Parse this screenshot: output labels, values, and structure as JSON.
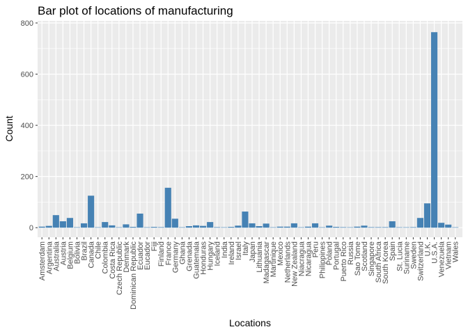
{
  "chart_data": {
    "type": "bar",
    "title": "Bar plot of locations of manufacturing",
    "xlabel": "Locations",
    "ylabel": "Count",
    "ylim": [
      0,
      800
    ],
    "yticks": [
      0,
      200,
      400,
      600,
      800
    ],
    "grid": true,
    "bar_color": "#4682B4",
    "panel_color": "#EBEBEB",
    "grid_color": "#FFFFFF",
    "categories": [
      "Amsterdam",
      "Argentina",
      "Australia",
      "Austria",
      "Belgium",
      "Bolivia",
      "Brazil",
      "Canada",
      "Chile",
      "Colombia",
      "Costa Rica",
      "Czech Republic",
      "Denmark",
      "Dominican Republic",
      "Ecuador",
      "Eucador",
      "Fiji",
      "Finland",
      "France",
      "Germany",
      "Ghana",
      "Grenada",
      "Guatemala",
      "Honduras",
      "Hungary",
      "Iceland",
      "India",
      "Ireland",
      "Israel",
      "Italy",
      "Japan",
      "Lithuania",
      "Madagascar",
      "Martinique",
      "Mexico",
      "Netherlands",
      "New Zealand",
      "Niacragua",
      "Nicaragua",
      "Peru",
      "Philippines",
      "Poland",
      "Portugal",
      "Puerto Rico",
      "Russia",
      "Sao Tome",
      "Scotland",
      "Singapore",
      "South Africa",
      "South Korea",
      "Spain",
      "St. Lucia",
      "Suriname",
      "Sweden",
      "Switzerland",
      "U.K.",
      "U.S.A.",
      "Venezuela",
      "Vietnam",
      "Wales"
    ],
    "values": [
      4,
      7,
      49,
      25,
      38,
      1,
      17,
      125,
      1,
      22,
      9,
      1,
      13,
      3,
      55,
      1,
      3,
      2,
      156,
      35,
      1,
      6,
      9,
      7,
      22,
      2,
      1,
      3,
      8,
      63,
      17,
      6,
      16,
      1,
      4,
      4,
      17,
      1,
      4,
      17,
      1,
      8,
      3,
      2,
      1,
      4,
      8,
      2,
      2,
      2,
      25,
      1,
      1,
      2,
      38,
      95,
      764,
      19,
      12,
      1
    ]
  }
}
